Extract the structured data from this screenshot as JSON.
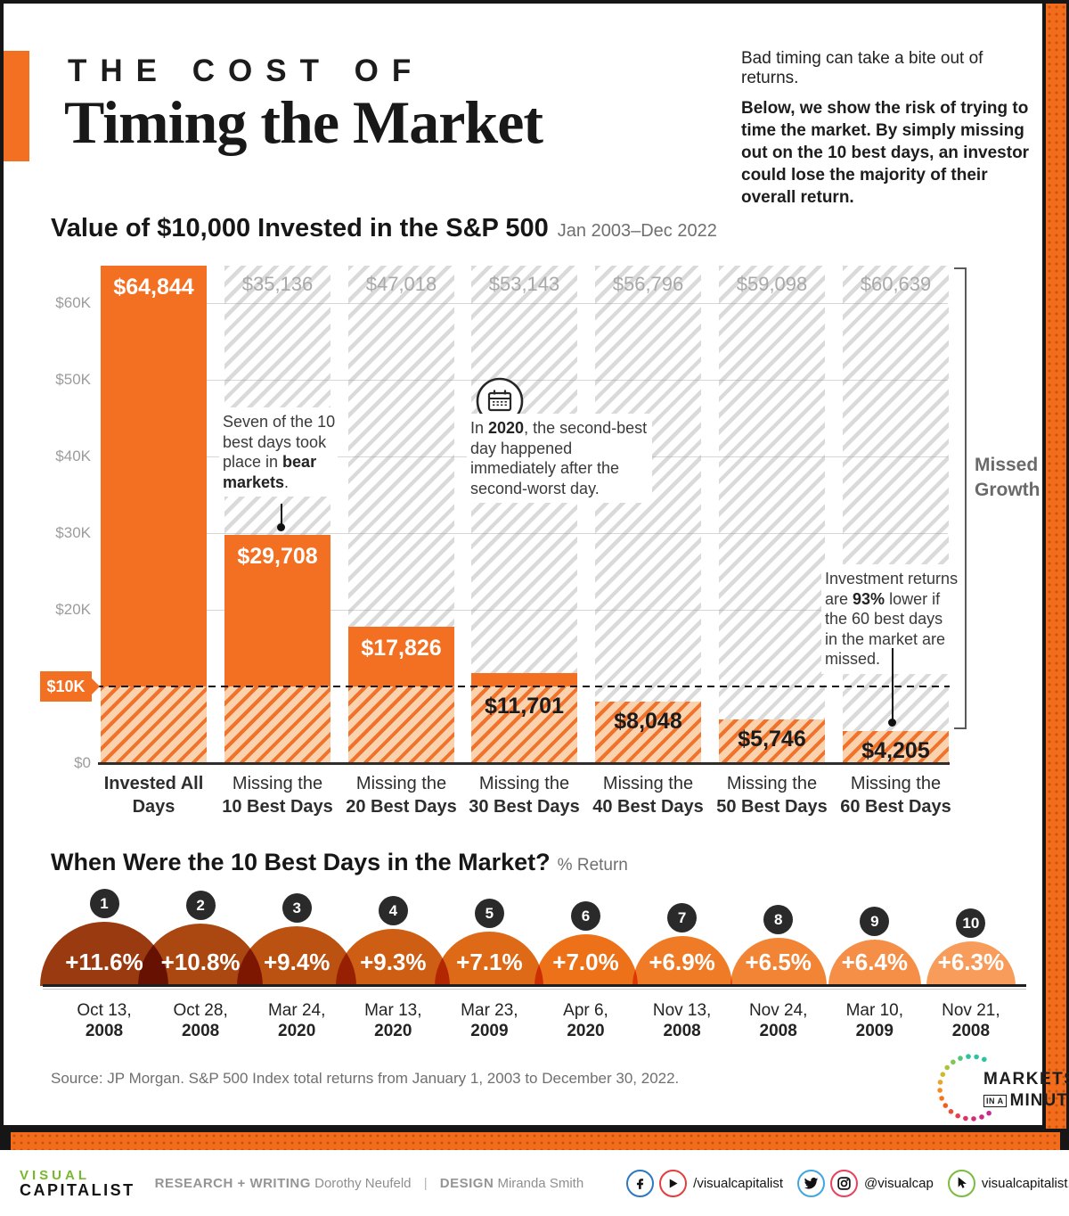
{
  "header": {
    "kicker": "THE COST OF",
    "title": "Timing the Market",
    "intro_lead": "Bad timing can take a bite out of returns.",
    "intro_body": "Below, we show the risk of trying to time the market. By simply missing out on the 10 best days, an investor could lose the majority of their overall return."
  },
  "colors": {
    "accent_orange": "#f36f21",
    "badge": "#2a2a2a",
    "dome_colors": [
      "#993a10",
      "#ab4711",
      "#bc5212",
      "#cd5e14",
      "#de6916",
      "#ec7118",
      "#f07b26",
      "#f28435",
      "#f58e46",
      "#f79c5b"
    ],
    "social_rings": {
      "facebook": "#2e78c0",
      "youtube": "#e43d3d",
      "twitter": "#41a6e0",
      "instagram": "#e8435e",
      "cursor": "#7cbb42"
    }
  },
  "chart_data": [
    {
      "type": "bar",
      "title": "Value of $10,000 Invested in the S&P 500",
      "subtitle": "Jan 2003–Dec 2022",
      "categories": [
        {
          "line1": "Invested All Days",
          "line2": "",
          "bold_all": true
        },
        {
          "line1": "Missing the",
          "line2": "10 Best Days"
        },
        {
          "line1": "Missing the",
          "line2": "20 Best Days"
        },
        {
          "line1": "Missing the",
          "line2": "30 Best Days"
        },
        {
          "line1": "Missing the",
          "line2": "40 Best Days"
        },
        {
          "line1": "Missing the",
          "line2": "50 Best Days"
        },
        {
          "line1": "Missing the",
          "line2": "60 Best Days"
        }
      ],
      "values": [
        64844,
        29708,
        17826,
        11701,
        8048,
        5746,
        4205
      ],
      "value_labels": [
        "$64,844",
        "$29,708",
        "$17,826",
        "$11,701",
        "$8,048",
        "$5,746",
        "$4,205"
      ],
      "missed_growth_values": [
        null,
        35136,
        47018,
        53143,
        56796,
        59098,
        60639
      ],
      "missed_growth_labels": [
        "",
        "$35,136",
        "$47,018",
        "$53,143",
        "$56,796",
        "$59,098",
        "$60,639"
      ],
      "initial_investment": 10000,
      "initial_tag": "$10K",
      "y_ticks_top_to_bottom": [
        "$60K",
        "$50K",
        "$40K",
        "$30K",
        "$20K",
        "$0"
      ],
      "ylim": [
        0,
        65000
      ],
      "right_axis_label": "Missed Growth"
    },
    {
      "type": "dome-bar",
      "title": "When Were the 10 Best Days in the Market?",
      "unit": "% Return",
      "points": [
        {
          "rank": "1",
          "pct_label": "+11.6%",
          "value": 11.6,
          "date_line1": "Oct 13,",
          "date_line2": "2008"
        },
        {
          "rank": "2",
          "pct_label": "+10.8%",
          "value": 10.8,
          "date_line1": "Oct 28,",
          "date_line2": "2008"
        },
        {
          "rank": "3",
          "pct_label": "+9.4%",
          "value": 9.4,
          "date_line1": "Mar 24,",
          "date_line2": "2020"
        },
        {
          "rank": "4",
          "pct_label": "+9.3%",
          "value": 9.3,
          "date_line1": "Mar 13,",
          "date_line2": "2020"
        },
        {
          "rank": "5",
          "pct_label": "+7.1%",
          "value": 7.1,
          "date_line1": "Mar 23,",
          "date_line2": "2009"
        },
        {
          "rank": "6",
          "pct_label": "+7.0%",
          "value": 7.0,
          "date_line1": "Apr 6,",
          "date_line2": "2020"
        },
        {
          "rank": "7",
          "pct_label": "+6.9%",
          "value": 6.9,
          "date_line1": "Nov 13,",
          "date_line2": "2008"
        },
        {
          "rank": "8",
          "pct_label": "+6.5%",
          "value": 6.5,
          "date_line1": "Nov 24,",
          "date_line2": "2008"
        },
        {
          "rank": "9",
          "pct_label": "+6.4%",
          "value": 6.4,
          "date_line1": "Mar 10,",
          "date_line2": "2009"
        },
        {
          "rank": "10",
          "pct_label": "+6.3%",
          "value": 6.3,
          "date_line1": "Nov 21,",
          "date_line2": "2008"
        }
      ]
    }
  ],
  "annotations": {
    "bear": {
      "pre": "Seven of the 10 best days took place in ",
      "bold": "bear markets",
      "post": "."
    },
    "y2020": {
      "pre": "In ",
      "bold": "2020",
      "post": ", the second-best day happened immediately after the second-worst day."
    },
    "pct93": {
      "pre": "Investment returns are ",
      "bold": "93%",
      "post": " lower if the 60 best days in the market are missed."
    }
  },
  "source": "Source: JP Morgan. S&P 500 Index total returns from January 1, 2003 to December 30, 2022.",
  "miam_logo": {
    "line1": "MARKETS",
    "line2_small": "IN A",
    "line2": "MINUTE"
  },
  "footer": {
    "brand_line1": "VISUAL",
    "brand_line2": "CAPITALIST",
    "credit_role1": "RESEARCH + WRITING",
    "credit_name1": "Dorothy Neufeld",
    "separator": "|",
    "credit_role2": "DESIGN",
    "credit_name2": "Miranda Smith",
    "socials": [
      {
        "icons": [
          "facebook",
          "youtube"
        ],
        "label": "/visualcapitalist"
      },
      {
        "icons": [
          "twitter",
          "instagram"
        ],
        "label": "@visualcap"
      },
      {
        "icons": [
          "cursor"
        ],
        "label": "visualcapitalist.com"
      }
    ]
  }
}
